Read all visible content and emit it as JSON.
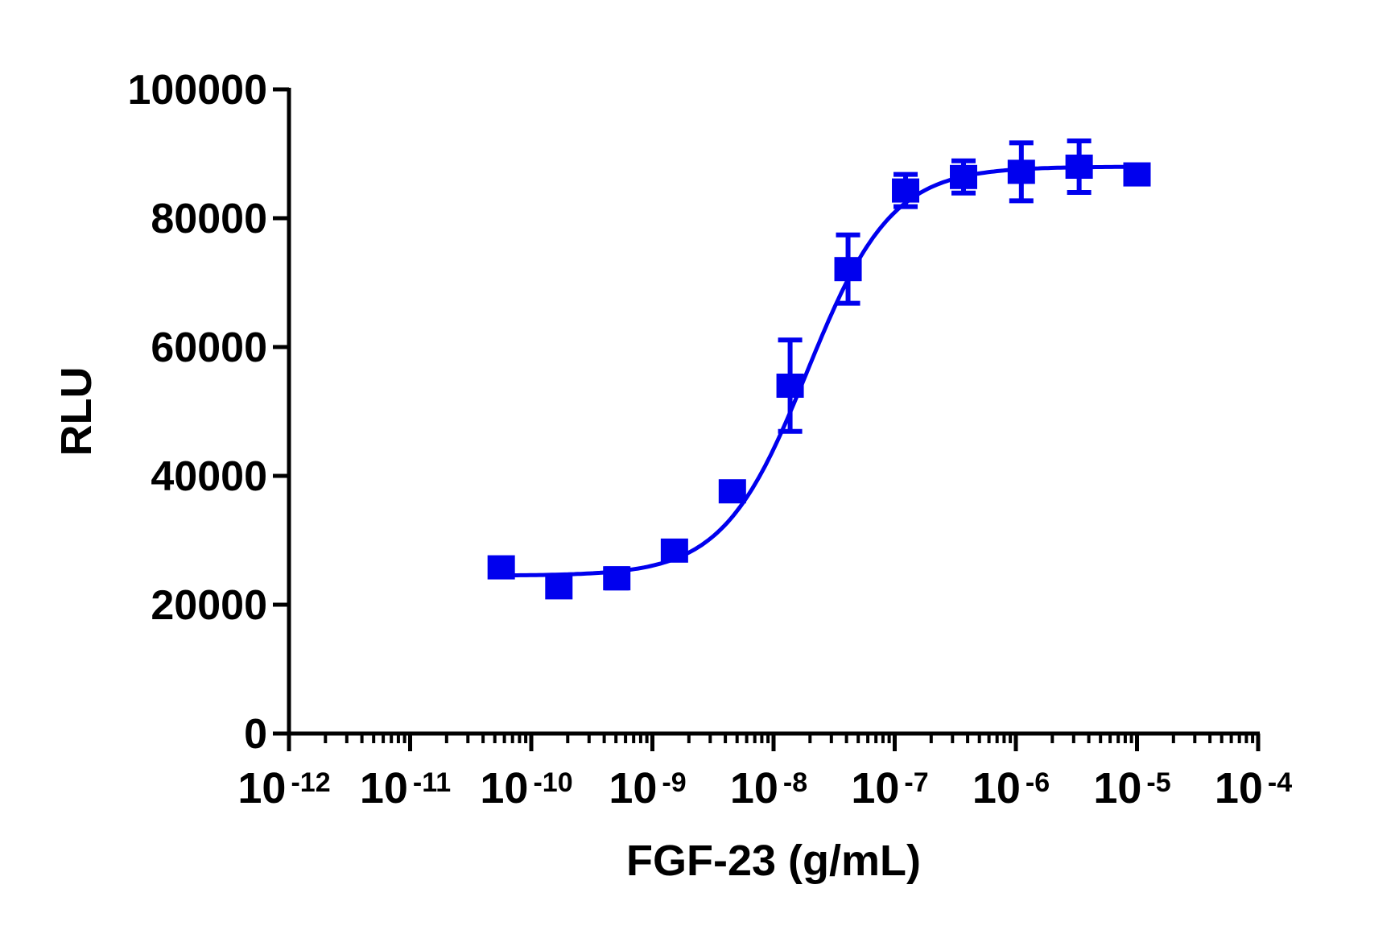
{
  "chart_data": {
    "type": "scatter",
    "title": "",
    "xlabel": "FGF-23 (g/mL)",
    "ylabel": "RLU",
    "xscale": "log",
    "xlim": [
      1e-12,
      0.0001
    ],
    "ylim": [
      0,
      100000
    ],
    "x_ticks": [
      {
        "base": "10",
        "exp": "-12"
      },
      {
        "base": "10",
        "exp": "-11"
      },
      {
        "base": "10",
        "exp": "-10"
      },
      {
        "base": "10",
        "exp": "-9"
      },
      {
        "base": "10",
        "exp": "-8"
      },
      {
        "base": "10",
        "exp": "-7"
      },
      {
        "base": "10",
        "exp": "-6"
      },
      {
        "base": "10",
        "exp": "-5"
      },
      {
        "base": "10",
        "exp": "-4"
      }
    ],
    "y_ticks": [
      "0",
      "20000",
      "40000",
      "60000",
      "80000",
      "100000"
    ],
    "grid": false,
    "legend": "none",
    "color": "#0000ee",
    "marker": "square",
    "fit": "sigmoidal dose-response curve",
    "x": [
      5.65e-11,
      1.69e-10,
      5.08e-10,
      1.52e-09,
      4.57e-09,
      1.37e-08,
      4.12e-08,
      1.23e-07,
      3.7e-07,
      1.11e-06,
      3.33e-06,
      1e-05
    ],
    "y": [
      25800,
      22700,
      24100,
      28400,
      37600,
      54000,
      72100,
      84300,
      86400,
      87200,
      88000,
      86800
    ],
    "error": [
      600,
      600,
      1500,
      600,
      1000,
      7100,
      5300,
      2500,
      2500,
      4500,
      4000,
      600
    ]
  }
}
